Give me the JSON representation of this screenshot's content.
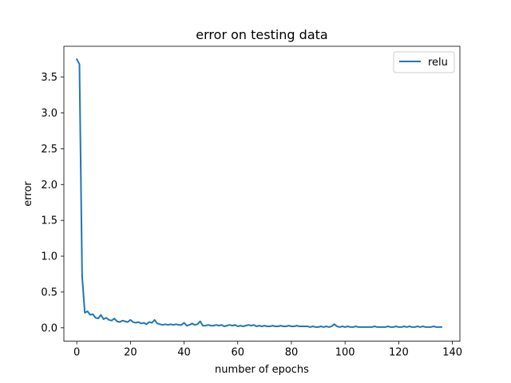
{
  "chart_data": {
    "type": "line",
    "title": "error on testing data",
    "xlabel": "number of epochs",
    "ylabel": "error",
    "xlim": [
      -4.8,
      142.8
    ],
    "ylim": [
      -0.187,
      3.93
    ],
    "xticks": [
      0,
      20,
      40,
      60,
      80,
      100,
      120,
      140
    ],
    "yticks": [
      0.0,
      0.5,
      1.0,
      1.5,
      2.0,
      2.5,
      3.0,
      3.5
    ],
    "ytick_labels": [
      "0.0",
      "0.5",
      "1.0",
      "1.5",
      "2.0",
      "2.5",
      "3.0",
      "3.5"
    ],
    "grid": false,
    "legend_position": "top-right",
    "series": [
      {
        "name": "relu",
        "color": "#1f77b4",
        "x": [
          0,
          1,
          2,
          3,
          4,
          5,
          6,
          7,
          8,
          9,
          10,
          11,
          12,
          13,
          14,
          15,
          16,
          17,
          18,
          19,
          20,
          21,
          22,
          23,
          24,
          25,
          26,
          27,
          28,
          29,
          30,
          31,
          32,
          33,
          34,
          35,
          36,
          37,
          38,
          39,
          40,
          41,
          42,
          43,
          44,
          45,
          46,
          47,
          48,
          49,
          50,
          51,
          52,
          53,
          54,
          55,
          56,
          57,
          58,
          59,
          60,
          61,
          62,
          63,
          64,
          65,
          66,
          67,
          68,
          69,
          70,
          71,
          72,
          73,
          74,
          75,
          76,
          77,
          78,
          79,
          80,
          81,
          82,
          83,
          84,
          85,
          86,
          87,
          88,
          89,
          90,
          91,
          92,
          93,
          94,
          95,
          96,
          97,
          98,
          99,
          100,
          101,
          102,
          103,
          104,
          105,
          106,
          107,
          108,
          109,
          110,
          111,
          112,
          113,
          114,
          115,
          116,
          117,
          118,
          119,
          120,
          121,
          122,
          123,
          124,
          125,
          126,
          127,
          128,
          129,
          130,
          131,
          132,
          133,
          134,
          135,
          136
        ],
        "y": [
          3.75,
          3.68,
          0.72,
          0.21,
          0.23,
          0.18,
          0.19,
          0.14,
          0.13,
          0.18,
          0.12,
          0.14,
          0.11,
          0.1,
          0.13,
          0.09,
          0.08,
          0.1,
          0.09,
          0.08,
          0.11,
          0.08,
          0.07,
          0.08,
          0.06,
          0.07,
          0.05,
          0.08,
          0.07,
          0.11,
          0.06,
          0.05,
          0.04,
          0.05,
          0.04,
          0.05,
          0.04,
          0.05,
          0.04,
          0.04,
          0.07,
          0.03,
          0.04,
          0.06,
          0.04,
          0.05,
          0.09,
          0.03,
          0.03,
          0.04,
          0.03,
          0.03,
          0.04,
          0.03,
          0.04,
          0.02,
          0.03,
          0.04,
          0.03,
          0.04,
          0.02,
          0.03,
          0.02,
          0.03,
          0.04,
          0.03,
          0.04,
          0.02,
          0.03,
          0.02,
          0.03,
          0.02,
          0.02,
          0.03,
          0.02,
          0.02,
          0.03,
          0.02,
          0.02,
          0.03,
          0.02,
          0.02,
          0.03,
          0.02,
          0.02,
          0.02,
          0.02,
          0.01,
          0.02,
          0.01,
          0.01,
          0.02,
          0.01,
          0.02,
          0.01,
          0.02,
          0.05,
          0.02,
          0.01,
          0.02,
          0.01,
          0.02,
          0.01,
          0.01,
          0.02,
          0.01,
          0.01,
          0.01,
          0.01,
          0.01,
          0.01,
          0.02,
          0.01,
          0.01,
          0.01,
          0.01,
          0.02,
          0.01,
          0.01,
          0.02,
          0.01,
          0.01,
          0.02,
          0.01,
          0.02,
          0.01,
          0.01,
          0.02,
          0.01,
          0.02,
          0.01,
          0.01,
          0.01,
          0.02,
          0.01,
          0.01,
          0.01
        ]
      }
    ]
  }
}
